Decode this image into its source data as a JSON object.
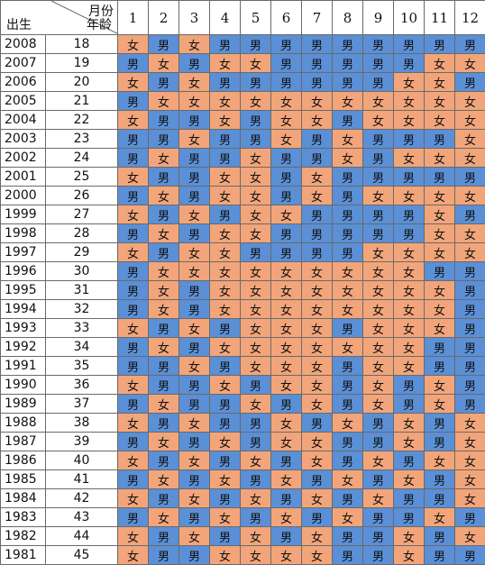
{
  "colors": {
    "boy": "#5b8fd6",
    "girl": "#f2a57a"
  },
  "header": {
    "birth_label": "出生",
    "month_label": "月份",
    "age_label": "年龄",
    "months": [
      "1",
      "2",
      "3",
      "4",
      "5",
      "6",
      "7",
      "8",
      "9",
      "10",
      "11",
      "12"
    ]
  },
  "rows": [
    {
      "year": "2008",
      "age": "18",
      "cells": [
        "女",
        "男",
        "女",
        "男",
        "男",
        "男",
        "男",
        "男",
        "男",
        "男",
        "男",
        "男"
      ]
    },
    {
      "year": "2007",
      "age": "19",
      "cells": [
        "男",
        "女",
        "男",
        "女",
        "女",
        "男",
        "男",
        "男",
        "男",
        "男",
        "女",
        "女"
      ]
    },
    {
      "year": "2006",
      "age": "20",
      "cells": [
        "女",
        "男",
        "女",
        "男",
        "男",
        "男",
        "男",
        "男",
        "男",
        "女",
        "女",
        "男"
      ]
    },
    {
      "year": "2005",
      "age": "21",
      "cells": [
        "男",
        "女",
        "女",
        "女",
        "女",
        "女",
        "女",
        "女",
        "女",
        "女",
        "女",
        "女"
      ]
    },
    {
      "year": "2004",
      "age": "22",
      "cells": [
        "女",
        "男",
        "男",
        "女",
        "男",
        "女",
        "女",
        "男",
        "女",
        "女",
        "女",
        "女"
      ]
    },
    {
      "year": "2003",
      "age": "23",
      "cells": [
        "男",
        "男",
        "女",
        "男",
        "男",
        "女",
        "男",
        "女",
        "男",
        "男",
        "男",
        "女"
      ]
    },
    {
      "year": "2002",
      "age": "24",
      "cells": [
        "男",
        "女",
        "男",
        "男",
        "女",
        "男",
        "男",
        "女",
        "男",
        "女",
        "女",
        "女"
      ]
    },
    {
      "year": "2001",
      "age": "25",
      "cells": [
        "女",
        "男",
        "男",
        "女",
        "女",
        "男",
        "女",
        "男",
        "男",
        "男",
        "男",
        "男"
      ]
    },
    {
      "year": "2000",
      "age": "26",
      "cells": [
        "男",
        "女",
        "男",
        "女",
        "女",
        "男",
        "女",
        "男",
        "女",
        "女",
        "女",
        "女"
      ]
    },
    {
      "year": "1999",
      "age": "27",
      "cells": [
        "女",
        "男",
        "女",
        "男",
        "女",
        "女",
        "男",
        "男",
        "男",
        "男",
        "女",
        "男"
      ]
    },
    {
      "year": "1998",
      "age": "28",
      "cells": [
        "男",
        "女",
        "男",
        "女",
        "女",
        "男",
        "男",
        "男",
        "男",
        "男",
        "女",
        "女"
      ]
    },
    {
      "year": "1997",
      "age": "29",
      "cells": [
        "女",
        "男",
        "女",
        "女",
        "男",
        "男",
        "男",
        "男",
        "女",
        "女",
        "女",
        "女"
      ]
    },
    {
      "year": "1996",
      "age": "30",
      "cells": [
        "男",
        "女",
        "女",
        "女",
        "女",
        "女",
        "女",
        "女",
        "女",
        "女",
        "男",
        "男"
      ]
    },
    {
      "year": "1995",
      "age": "31",
      "cells": [
        "男",
        "女",
        "男",
        "女",
        "女",
        "女",
        "女",
        "女",
        "女",
        "女",
        "女",
        "男"
      ]
    },
    {
      "year": "1994",
      "age": "32",
      "cells": [
        "男",
        "女",
        "男",
        "女",
        "女",
        "女",
        "女",
        "女",
        "女",
        "女",
        "女",
        "男"
      ]
    },
    {
      "year": "1993",
      "age": "33",
      "cells": [
        "女",
        "男",
        "女",
        "男",
        "女",
        "女",
        "女",
        "男",
        "女",
        "女",
        "女",
        "男"
      ]
    },
    {
      "year": "1992",
      "age": "34",
      "cells": [
        "男",
        "女",
        "男",
        "女",
        "女",
        "女",
        "女",
        "女",
        "女",
        "女",
        "男",
        "男"
      ]
    },
    {
      "year": "1991",
      "age": "35",
      "cells": [
        "男",
        "男",
        "女",
        "男",
        "女",
        "女",
        "女",
        "男",
        "女",
        "女",
        "男",
        "男"
      ]
    },
    {
      "year": "1990",
      "age": "36",
      "cells": [
        "女",
        "男",
        "男",
        "女",
        "男",
        "女",
        "女",
        "男",
        "女",
        "男",
        "女",
        "男"
      ]
    },
    {
      "year": "1989",
      "age": "37",
      "cells": [
        "男",
        "女",
        "男",
        "男",
        "女",
        "男",
        "女",
        "男",
        "女",
        "男",
        "女",
        "男"
      ]
    },
    {
      "year": "1988",
      "age": "38",
      "cells": [
        "女",
        "男",
        "女",
        "男",
        "男",
        "女",
        "男",
        "女",
        "男",
        "女",
        "男",
        "女"
      ]
    },
    {
      "year": "1987",
      "age": "39",
      "cells": [
        "男",
        "女",
        "男",
        "女",
        "男",
        "女",
        "女",
        "男",
        "男",
        "女",
        "男",
        "女"
      ]
    },
    {
      "year": "1986",
      "age": "40",
      "cells": [
        "女",
        "男",
        "女",
        "男",
        "女",
        "男",
        "女",
        "男",
        "女",
        "男",
        "女",
        "女"
      ]
    },
    {
      "year": "1985",
      "age": "41",
      "cells": [
        "男",
        "女",
        "男",
        "女",
        "男",
        "女",
        "男",
        "女",
        "男",
        "女",
        "男",
        "女"
      ]
    },
    {
      "year": "1984",
      "age": "42",
      "cells": [
        "女",
        "男",
        "女",
        "男",
        "女",
        "男",
        "女",
        "男",
        "女",
        "男",
        "男",
        "女"
      ]
    },
    {
      "year": "1983",
      "age": "43",
      "cells": [
        "男",
        "女",
        "男",
        "女",
        "男",
        "女",
        "男",
        "女",
        "男",
        "男",
        "女",
        "男"
      ]
    },
    {
      "year": "1982",
      "age": "44",
      "cells": [
        "女",
        "男",
        "女",
        "男",
        "女",
        "男",
        "女",
        "男",
        "男",
        "女",
        "男",
        "女"
      ]
    },
    {
      "year": "1981",
      "age": "45",
      "cells": [
        "女",
        "男",
        "男",
        "女",
        "女",
        "女",
        "女",
        "男",
        "男",
        "女",
        "男",
        "男"
      ]
    }
  ],
  "chart_data": {
    "type": "table",
    "title": "",
    "xlabel": "月份",
    "ylabel": "年龄",
    "columns": [
      "出生",
      "年龄",
      "1",
      "2",
      "3",
      "4",
      "5",
      "6",
      "7",
      "8",
      "9",
      "10",
      "11",
      "12"
    ]
  }
}
